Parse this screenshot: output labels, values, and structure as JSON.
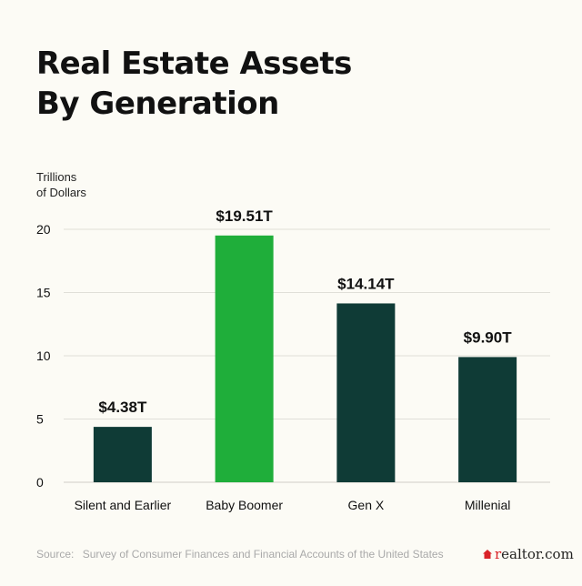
{
  "colors": {
    "background": "#fcfbf5",
    "bar_default": "#0f3b36",
    "bar_highlight": "#1fae3a",
    "grid": "#e0dfd8",
    "text": "#111111",
    "source": "#a9a9a9",
    "logo_accent": "#d92228"
  },
  "title_lines": [
    "Real Estate Assets",
    "By Generation"
  ],
  "ylabel_lines": [
    "Trillions",
    "of Dollars"
  ],
  "source": {
    "label": "Source:",
    "text": "Survey of Consumer Finances and Financial Accounts of the United States"
  },
  "logo": {
    "icon": "house-icon",
    "accent": "r",
    "rest": "ealtor.com"
  },
  "chart_data": {
    "type": "bar",
    "title": "Real Estate Assets By Generation",
    "ylabel": "Trillions of Dollars",
    "xlabel": "",
    "ylim": [
      0,
      20
    ],
    "yticks": [
      0,
      5,
      10,
      15,
      20
    ],
    "grid": true,
    "highlight_index": 1,
    "categories": [
      "Silent and Earlier",
      "Baby Boomer",
      "Gen X",
      "Millenial"
    ],
    "values": [
      4.38,
      19.51,
      14.14,
      9.9
    ],
    "value_labels": [
      "$4.38T",
      "$19.51T",
      "$14.14T",
      "$9.90T"
    ]
  }
}
